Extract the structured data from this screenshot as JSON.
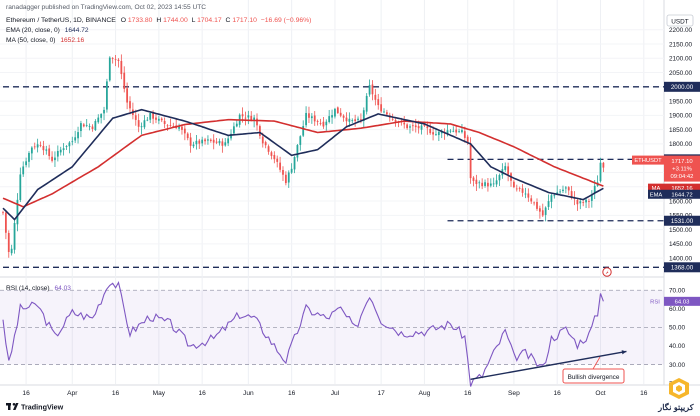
{
  "header": {
    "publisher_line": "ranadagger published on TradingView.com, Oct 02, 2023 14:55 UTC",
    "symbol_line_prefix": "Ethereum / TetherUS, 1D, BINANCE",
    "ohlc": {
      "o_label": "O",
      "o_value": "1733.80",
      "h_label": "H",
      "h_value": "1744.00",
      "l_label": "L",
      "l_value": "1704.17",
      "c_label": "C",
      "c_value": "1717.10",
      "change": "−16.69 (−0.96%)"
    },
    "ema_line_label": "EMA (20, close, 0)",
    "ema_line_value": "1644.72",
    "ma_line_label": "MA (50, close, 0)",
    "ma_line_value": "1652.16",
    "currency": "USDT"
  },
  "colors": {
    "up": "#26a69a",
    "down": "#ef5350",
    "ema": "#1f2d5a",
    "ma": "#d32f2f",
    "rsi": "#7e57c2",
    "level_line": "#1f2d5a",
    "divergence_line": "#1f2d5a",
    "callout_border": "#ef5350",
    "price_tag_bg": "#ef5350",
    "ema_tag_bg": "#1f2d5a",
    "ma_tag_bg": "#d32f2f"
  },
  "chart_data": [
    {
      "type": "candlestick",
      "title": "Ethereum / TetherUS, 1D, BINANCE",
      "ylabel": "USDT",
      "ylim": [
        1355,
        2255
      ],
      "y_ticks": [
        1400,
        1450,
        1500,
        1550,
        1600,
        1650,
        1700,
        1750,
        1800,
        1850,
        1900,
        1950,
        2000,
        2050,
        2100,
        2150,
        2200
      ],
      "x_ticks": [
        {
          "label": "16",
          "date": "2023-03-16"
        },
        {
          "label": "Apr",
          "date": "2023-04-01"
        },
        {
          "label": "16",
          "date": "2023-04-16"
        },
        {
          "label": "May",
          "date": "2023-05-01"
        },
        {
          "label": "16",
          "date": "2023-05-16"
        },
        {
          "label": "Jun",
          "date": "2023-06-01"
        },
        {
          "label": "16",
          "date": "2023-06-16"
        },
        {
          "label": "Jul",
          "date": "2023-07-01"
        },
        {
          "label": "17",
          "date": "2023-07-17"
        },
        {
          "label": "Aug",
          "date": "2023-08-01"
        },
        {
          "label": "16",
          "date": "2023-08-16"
        },
        {
          "label": "Sep",
          "date": "2023-09-01"
        },
        {
          "label": "16",
          "date": "2023-09-16"
        },
        {
          "label": "Oct",
          "date": "2023-10-01"
        },
        {
          "label": "16",
          "date": "2023-10-16"
        }
      ],
      "price_anchors": [
        [
          "2023-03-08",
          1560
        ],
        [
          "2023-03-10",
          1420
        ],
        [
          "2023-03-11",
          1430
        ],
        [
          "2023-03-14",
          1700
        ],
        [
          "2023-03-18",
          1790
        ],
        [
          "2023-03-21",
          1800
        ],
        [
          "2023-03-25",
          1745
        ],
        [
          "2023-03-29",
          1790
        ],
        [
          "2023-04-01",
          1810
        ],
        [
          "2023-04-04",
          1870
        ],
        [
          "2023-04-08",
          1860
        ],
        [
          "2023-04-12",
          1920
        ],
        [
          "2023-04-14",
          2110
        ],
        [
          "2023-04-17",
          2090
        ],
        [
          "2023-04-20",
          1945
        ],
        [
          "2023-04-24",
          1860
        ],
        [
          "2023-04-28",
          1900
        ],
        [
          "2023-05-03",
          1870
        ],
        [
          "2023-05-08",
          1860
        ],
        [
          "2023-05-12",
          1800
        ],
        [
          "2023-05-18",
          1810
        ],
        [
          "2023-05-24",
          1800
        ],
        [
          "2023-05-29",
          1900
        ],
        [
          "2023-06-03",
          1890
        ],
        [
          "2023-06-06",
          1810
        ],
        [
          "2023-06-10",
          1750
        ],
        [
          "2023-06-14",
          1670
        ],
        [
          "2023-06-16",
          1720
        ],
        [
          "2023-06-21",
          1900
        ],
        [
          "2023-06-27",
          1870
        ],
        [
          "2023-07-01",
          1920
        ],
        [
          "2023-07-06",
          1880
        ],
        [
          "2023-07-10",
          1880
        ],
        [
          "2023-07-13",
          2000
        ],
        [
          "2023-07-16",
          1930
        ],
        [
          "2023-07-21",
          1890
        ],
        [
          "2023-07-26",
          1860
        ],
        [
          "2023-08-01",
          1855
        ],
        [
          "2023-08-05",
          1835
        ],
        [
          "2023-08-10",
          1850
        ],
        [
          "2023-08-14",
          1840
        ],
        [
          "2023-08-16",
          1805
        ],
        [
          "2023-08-17",
          1680
        ],
        [
          "2023-08-18",
          1665
        ],
        [
          "2023-08-25",
          1655
        ],
        [
          "2023-08-29",
          1720
        ],
        [
          "2023-09-01",
          1640
        ],
        [
          "2023-09-05",
          1630
        ],
        [
          "2023-09-11",
          1550
        ],
        [
          "2023-09-14",
          1620
        ],
        [
          "2023-09-19",
          1645
        ],
        [
          "2023-09-23",
          1590
        ],
        [
          "2023-09-27",
          1600
        ],
        [
          "2023-09-30",
          1670
        ],
        [
          "2023-10-01",
          1735
        ],
        [
          "2023-10-02",
          1717
        ]
      ],
      "ema20_anchors": [
        [
          "2023-03-08",
          1575
        ],
        [
          "2023-03-12",
          1535
        ],
        [
          "2023-03-20",
          1640
        ],
        [
          "2023-04-01",
          1720
        ],
        [
          "2023-04-15",
          1890
        ],
        [
          "2023-04-25",
          1920
        ],
        [
          "2023-05-10",
          1880
        ],
        [
          "2023-05-25",
          1830
        ],
        [
          "2023-06-05",
          1840
        ],
        [
          "2023-06-16",
          1760
        ],
        [
          "2023-06-25",
          1780
        ],
        [
          "2023-07-05",
          1860
        ],
        [
          "2023-07-16",
          1905
        ],
        [
          "2023-08-01",
          1870
        ],
        [
          "2023-08-17",
          1800
        ],
        [
          "2023-08-24",
          1720
        ],
        [
          "2023-09-01",
          1680
        ],
        [
          "2023-09-13",
          1630
        ],
        [
          "2023-09-25",
          1605
        ],
        [
          "2023-10-02",
          1644.72
        ]
      ],
      "ma50_anchors": [
        [
          "2023-03-08",
          1610
        ],
        [
          "2023-03-15",
          1580
        ],
        [
          "2023-03-25",
          1625
        ],
        [
          "2023-04-10",
          1720
        ],
        [
          "2023-04-25",
          1830
        ],
        [
          "2023-05-10",
          1868
        ],
        [
          "2023-05-25",
          1885
        ],
        [
          "2023-06-10",
          1880
        ],
        [
          "2023-06-25",
          1840
        ],
        [
          "2023-07-10",
          1855
        ],
        [
          "2023-07-25",
          1880
        ],
        [
          "2023-08-10",
          1870
        ],
        [
          "2023-08-20",
          1840
        ],
        [
          "2023-09-01",
          1790
        ],
        [
          "2023-09-15",
          1720
        ],
        [
          "2023-10-02",
          1652.16
        ]
      ],
      "horizontal_levels": [
        {
          "value": 2000.0,
          "label": "2000.00",
          "style": "dashed",
          "from": "2023-03-08"
        },
        {
          "value": 1746.0,
          "label": "1746.00",
          "style": "dashed",
          "from": "2023-08-09"
        },
        {
          "value": 1531.0,
          "label": "1531.00",
          "style": "dashed",
          "from": "2023-08-09"
        },
        {
          "value": 1368.0,
          "label": "1368.00",
          "style": "dashed",
          "from": "2023-03-08"
        }
      ],
      "price_tags": [
        {
          "kind": "symbol",
          "label": "ETHUSDT",
          "value": 1717.1,
          "lines": [
            "1717.10",
            "+3.11%",
            "09:04:42"
          ]
        },
        {
          "kind": "ma",
          "label": "MA",
          "value": 1652.16,
          "text": "1652.16"
        },
        {
          "kind": "ema",
          "label": "EMA",
          "value": 1644.72,
          "text": "1644.72"
        }
      ]
    },
    {
      "type": "line",
      "title": "RSI (14, close) 64.03",
      "series": [
        {
          "name": "RSI (14, close)",
          "last": 64.03
        }
      ],
      "ylim": [
        20,
        75
      ],
      "y_ticks": [
        20,
        30,
        40,
        50,
        60,
        70
      ],
      "band": [
        30,
        70
      ],
      "anchors": [
        [
          "2023-03-08",
          55
        ],
        [
          "2023-03-10",
          30
        ],
        [
          "2023-03-14",
          60
        ],
        [
          "2023-03-20",
          62
        ],
        [
          "2023-03-26",
          45
        ],
        [
          "2023-04-01",
          58
        ],
        [
          "2023-04-08",
          55
        ],
        [
          "2023-04-14",
          75
        ],
        [
          "2023-04-17",
          72
        ],
        [
          "2023-04-21",
          47
        ],
        [
          "2023-04-28",
          56
        ],
        [
          "2023-05-05",
          52
        ],
        [
          "2023-05-12",
          40
        ],
        [
          "2023-05-20",
          44
        ],
        [
          "2023-05-29",
          57
        ],
        [
          "2023-06-03",
          55
        ],
        [
          "2023-06-10",
          40
        ],
        [
          "2023-06-14",
          32
        ],
        [
          "2023-06-21",
          60
        ],
        [
          "2023-06-28",
          55
        ],
        [
          "2023-07-03",
          60
        ],
        [
          "2023-07-08",
          49
        ],
        [
          "2023-07-13",
          68
        ],
        [
          "2023-07-17",
          54
        ],
        [
          "2023-07-24",
          47
        ],
        [
          "2023-08-02",
          48
        ],
        [
          "2023-08-10",
          52
        ],
        [
          "2023-08-15",
          45
        ],
        [
          "2023-08-17",
          20
        ],
        [
          "2023-08-21",
          24
        ],
        [
          "2023-08-29",
          48
        ],
        [
          "2023-09-01",
          34
        ],
        [
          "2023-09-05",
          36
        ],
        [
          "2023-09-11",
          28
        ],
        [
          "2023-09-14",
          44
        ],
        [
          "2023-09-19",
          49
        ],
        [
          "2023-09-23",
          41
        ],
        [
          "2023-09-27",
          46
        ],
        [
          "2023-09-30",
          58
        ],
        [
          "2023-10-01",
          68
        ],
        [
          "2023-10-02",
          64.03
        ]
      ],
      "divergence_line": [
        [
          "2023-08-17",
          22
        ],
        [
          "2023-10-10",
          37
        ]
      ],
      "annotation": "Bullish divergence"
    }
  ],
  "footer": {
    "brand": "TradingView"
  },
  "watermark": {
    "text": "کریپتو نگار"
  }
}
